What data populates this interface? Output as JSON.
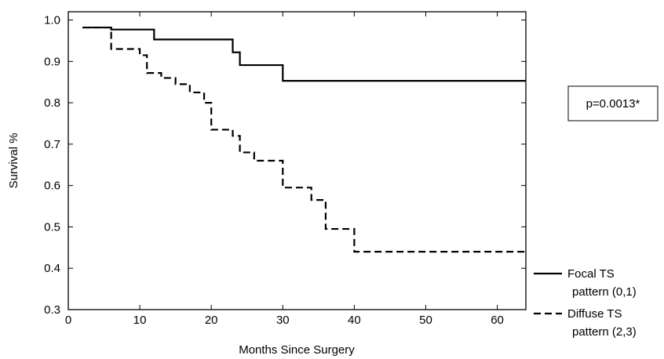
{
  "chart_data": {
    "type": "line",
    "title": "",
    "xlabel": "Months Since Surgery",
    "ylabel": "Survival %",
    "xlim": [
      0,
      64
    ],
    "ylim": [
      0.3,
      1.02
    ],
    "x_ticks": [
      0,
      10,
      20,
      30,
      40,
      50,
      60
    ],
    "y_ticks": [
      0.3,
      0.4,
      0.5,
      0.6,
      0.7,
      0.8,
      0.9,
      1.0
    ],
    "y_tick_labels": [
      "0.3",
      "0.4",
      "0.5",
      "0.6",
      "0.7",
      "0.8",
      "0.9",
      "1.0"
    ],
    "x_tick_labels": [
      "0",
      "10",
      "20",
      "30",
      "40",
      "50",
      "60"
    ],
    "grid": false,
    "legend_position": "outside-right-bottom",
    "annotation": "p=0.0013*",
    "series": [
      {
        "name": "Focal TS pattern (0,1)",
        "legend_lines": [
          "Focal TS",
          "pattern (0,1)"
        ],
        "style": "solid",
        "x": [
          2,
          6,
          12,
          23,
          24,
          25,
          30,
          64
        ],
        "y": [
          0.982,
          0.977,
          0.953,
          0.922,
          0.891,
          0.891,
          0.853,
          0.853
        ]
      },
      {
        "name": "Diffuse TS pattern (2,3)",
        "legend_lines": [
          "Diffuse TS",
          "pattern (2,3)"
        ],
        "style": "dashed",
        "x": [
          2,
          6,
          10,
          11,
          13,
          15,
          17,
          19,
          20,
          23,
          24,
          26,
          30,
          34,
          36,
          40,
          64
        ],
        "y": [
          0.982,
          0.93,
          0.915,
          0.872,
          0.86,
          0.845,
          0.825,
          0.8,
          0.735,
          0.72,
          0.68,
          0.66,
          0.595,
          0.565,
          0.495,
          0.44,
          0.44
        ]
      }
    ]
  }
}
